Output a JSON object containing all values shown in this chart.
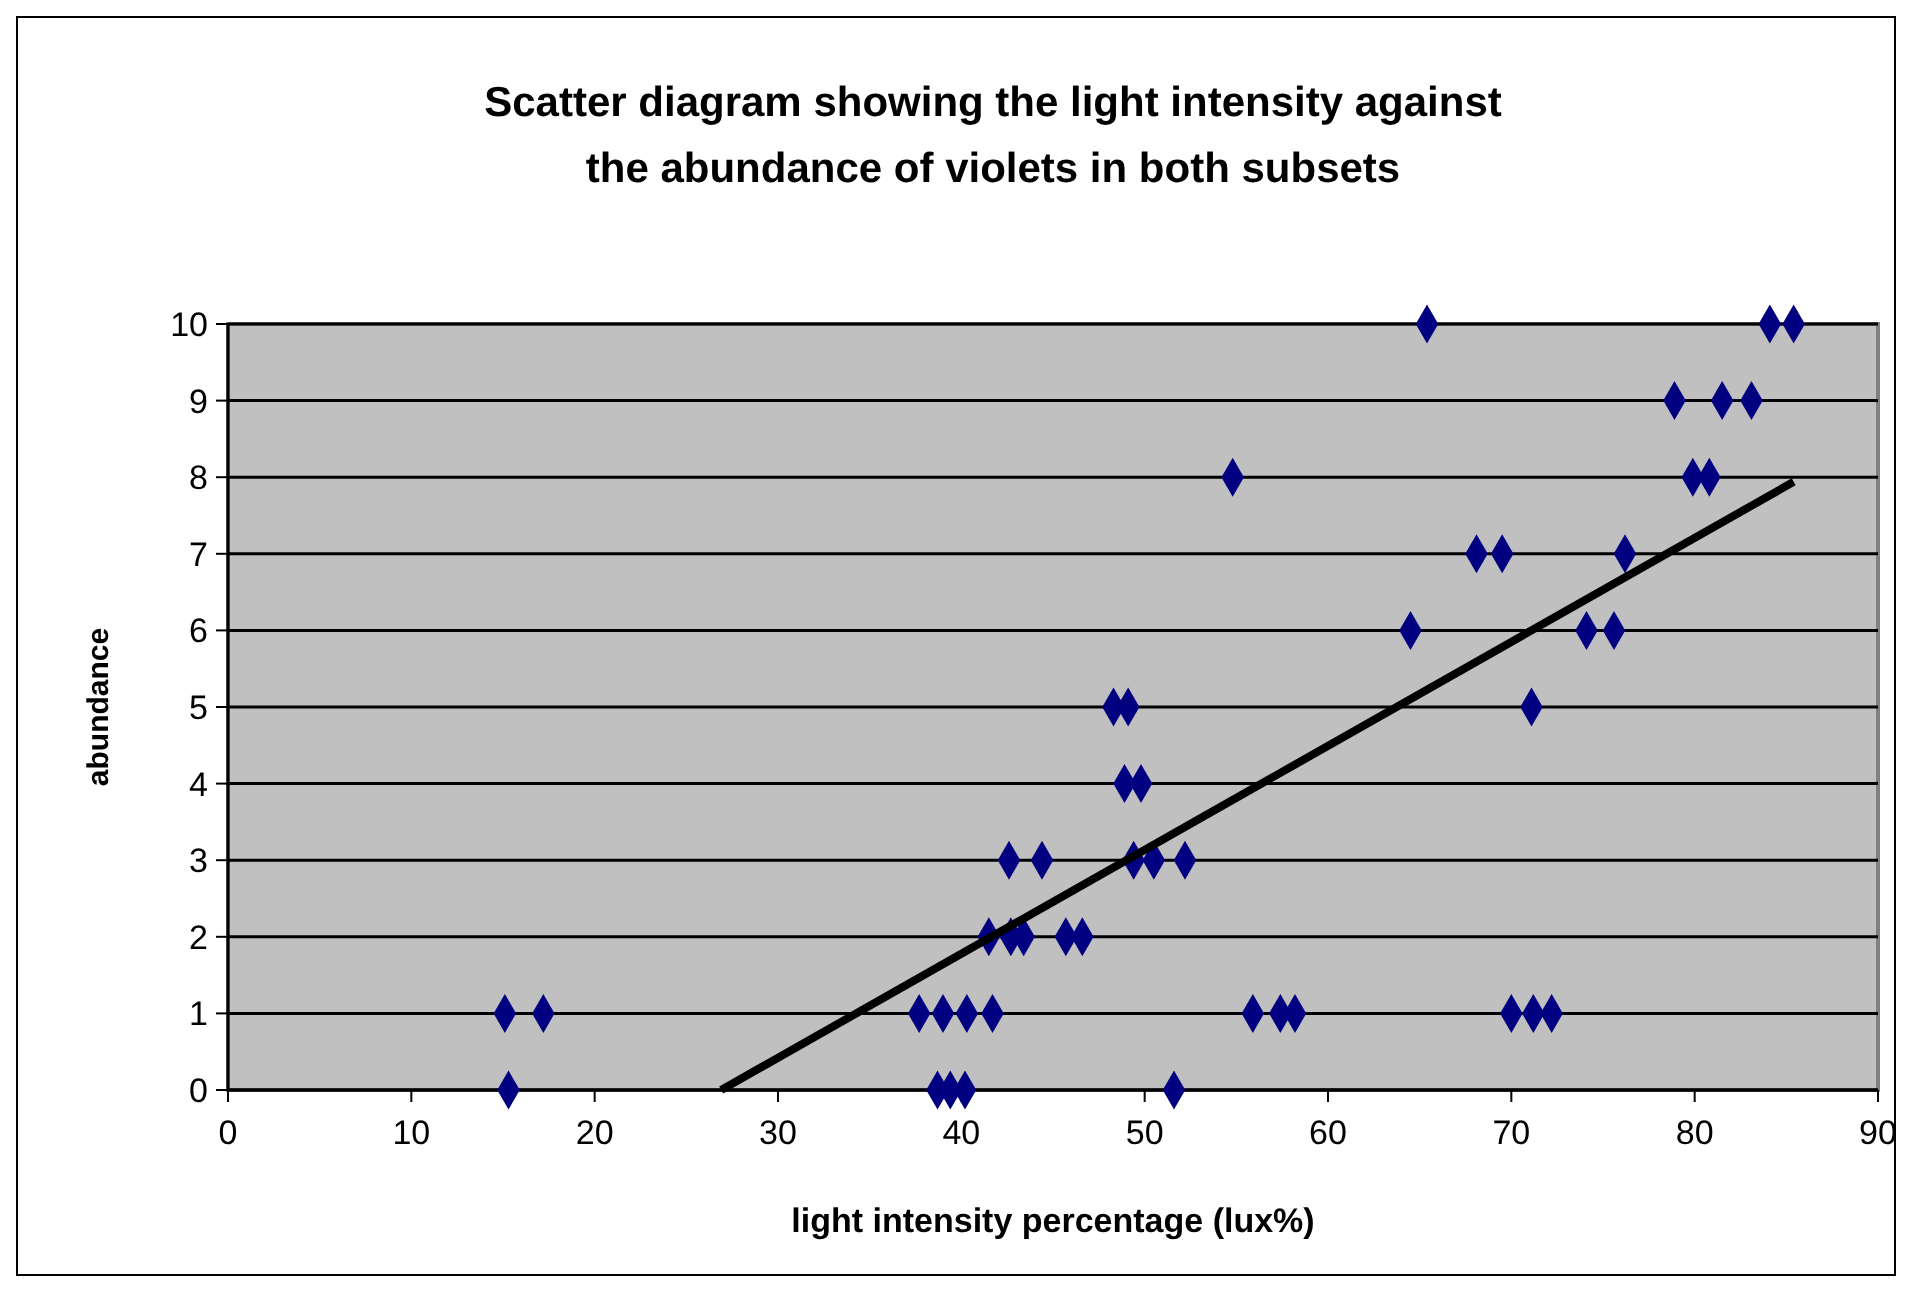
{
  "chart_data": {
    "type": "scatter",
    "title": "Scatter diagram showing the light intensity against the abundance of violets in both subsets",
    "xlabel": "light intensity percentage (lux%)",
    "ylabel": "abundance",
    "xlim": [
      0,
      90
    ],
    "xticks": [
      0,
      10,
      20,
      30,
      40,
      50,
      60,
      70,
      80,
      90
    ],
    "ylim": [
      0,
      10
    ],
    "yticks": [
      0,
      1,
      2,
      3,
      4,
      5,
      6,
      7,
      8,
      9,
      10
    ],
    "grid": "y",
    "marker": "diamond",
    "series": [
      {
        "color": "#000080",
        "x": [
          15.3,
          38.7,
          39.4,
          40.2,
          51.6,
          15.1,
          17.2,
          37.7,
          39.0,
          40.3,
          41.7,
          55.9,
          57.4,
          58.2,
          70.0,
          71.2,
          72.2,
          41.5,
          42.7,
          43.4,
          45.7,
          46.6,
          42.6,
          44.4,
          49.4,
          50.5,
          52.2,
          48.9,
          49.8,
          48.3,
          49.1,
          71.1,
          64.5,
          74.1,
          75.6,
          68.1,
          69.5,
          76.2,
          54.8,
          79.9,
          80.8,
          78.9,
          81.5,
          83.1,
          65.4,
          84.1,
          85.4
        ],
        "values": [
          0,
          0,
          0,
          0,
          0,
          1,
          1,
          1,
          1,
          1,
          1,
          1,
          1,
          1,
          1,
          1,
          1,
          2,
          2,
          2,
          2,
          2,
          3,
          3,
          3,
          3,
          3,
          4,
          4,
          5,
          5,
          5,
          6,
          6,
          6,
          7,
          7,
          7,
          8,
          8,
          8,
          9,
          9,
          9,
          10,
          10,
          10
        ]
      },
      {
        "type": "line",
        "color": "#000000",
        "marker": "none",
        "x": [
          26.9,
          85.4
        ],
        "values": [
          0,
          7.94
        ]
      }
    ]
  }
}
